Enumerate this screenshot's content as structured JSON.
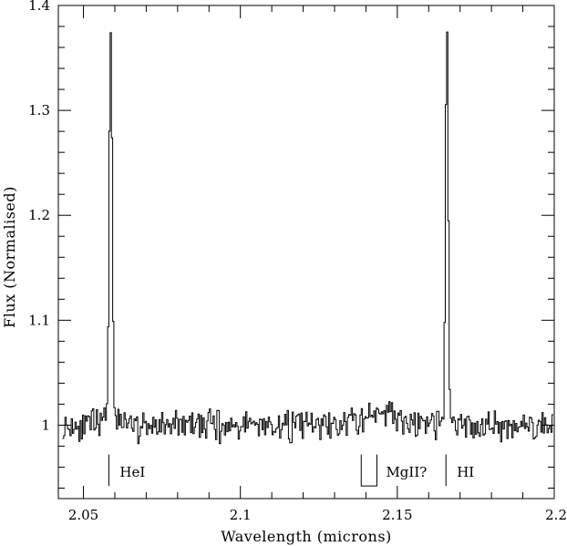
{
  "chart_data": {
    "type": "line",
    "title": "",
    "xlabel": "Wavelength (microns)",
    "ylabel": "Flux (Normalised)",
    "xlim": [
      2.042,
      2.2
    ],
    "ylim": [
      0.93,
      1.4
    ],
    "grid": false,
    "x_ticks": [
      {
        "value": 2.05,
        "label": "2.05"
      },
      {
        "value": 2.1,
        "label": "2.1"
      },
      {
        "value": 2.15,
        "label": "2.15"
      },
      {
        "value": 2.2,
        "label": "2.2"
      }
    ],
    "y_ticks": [
      {
        "value": 1.0,
        "label": "1"
      },
      {
        "value": 1.1,
        "label": "1.1"
      },
      {
        "value": 1.2,
        "label": "1.2"
      },
      {
        "value": 1.3,
        "label": "1.3"
      },
      {
        "value": 1.4,
        "label": "1.4"
      }
    ],
    "series": [
      {
        "style": "steps",
        "color": "#000000",
        "x_start": 2.0435,
        "x_step": 0.0004,
        "noise_amplitude": 0.012,
        "baseline": 1.0,
        "features": [
          {
            "type": "emission",
            "center": 2.0587,
            "peak": 1.377,
            "fwhm": 0.0012,
            "note": "HeI"
          },
          {
            "type": "emission",
            "center": 2.1658,
            "peak": 1.382,
            "fwhm": 0.001,
            "note": "HI"
          },
          {
            "type": "bump",
            "center": 2.1445,
            "height": 0.015,
            "width": 0.004
          }
        ]
      }
    ],
    "annotations": [
      {
        "label": "HeI",
        "x": 2.0581,
        "marker": "tick"
      },
      {
        "label": "MgII?",
        "x_range": [
          2.1385,
          2.1435
        ],
        "marker": "bracket"
      },
      {
        "label": "HI",
        "x": 2.1655,
        "marker": "tick"
      }
    ]
  }
}
